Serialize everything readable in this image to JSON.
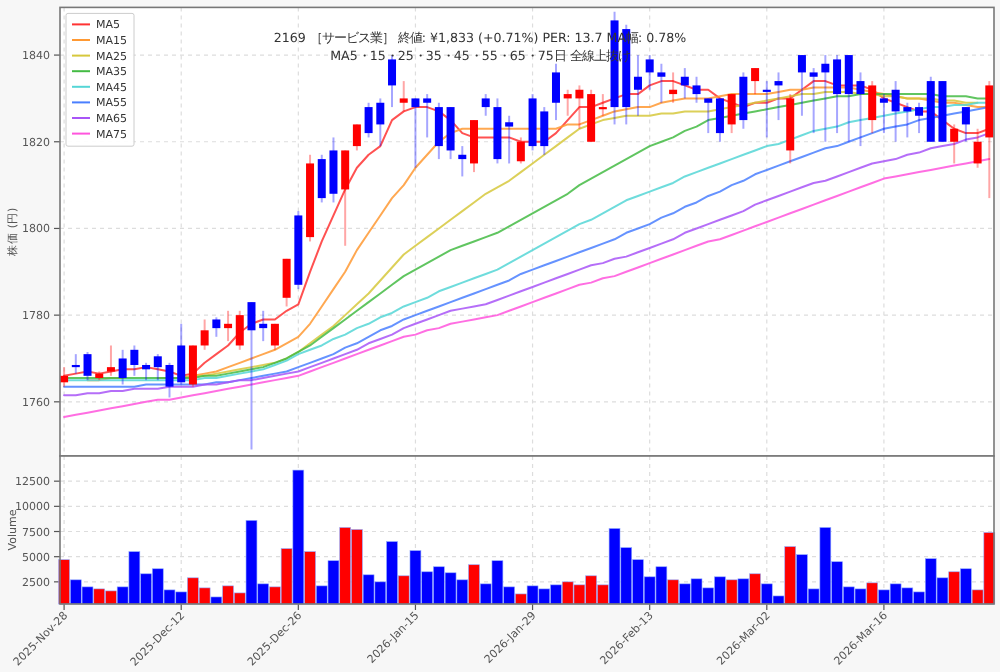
{
  "chart_data": [
    {
      "type": "candlestick",
      "title": "2169 ［サービス業］ 終値: ¥1,833 (+0.71%)   PER: 13.7 MA幅: 0.78%",
      "subtitle": "MA5・15・25・35・45・55・65・75日 全線上抜け",
      "ylabel": "株価 (円)",
      "categories": [
        null,
        null,
        null,
        null,
        null,
        null,
        null,
        null,
        null,
        null,
        null,
        null,
        null,
        null,
        null,
        null,
        null,
        null,
        null,
        null,
        null,
        null,
        null,
        null,
        null,
        null,
        null,
        null,
        null,
        null,
        null,
        null,
        null,
        null,
        null,
        null,
        null,
        null,
        null,
        null,
        null,
        null,
        null,
        null,
        null,
        null,
        null,
        null,
        null,
        null,
        null,
        null,
        null,
        null,
        null,
        null,
        null,
        null,
        null,
        null,
        null,
        null,
        null,
        null,
        null,
        null,
        null,
        null,
        null,
        null,
        null,
        null,
        null,
        null,
        null,
        null,
        null,
        null,
        null,
        null
      ],
      "ohlc": [
        [
          1764.5,
          1768,
          1763.5,
          1766
        ],
        [
          1768.5,
          1771,
          1766.5,
          1768
        ],
        [
          1771,
          1771.5,
          1765,
          1766
        ],
        [
          1765.5,
          1767,
          1765,
          1766.5
        ],
        [
          1767,
          1773,
          1766,
          1768
        ],
        [
          1770,
          1772,
          1764,
          1765.5
        ],
        [
          1772,
          1773,
          1766,
          1768.5
        ],
        [
          1768.5,
          1769,
          1765,
          1767.5
        ],
        [
          1770.5,
          1771,
          1765,
          1768
        ],
        [
          1768.5,
          1769,
          1761,
          1763.5
        ],
        [
          1773,
          1778,
          1764,
          1764.5
        ],
        [
          1764,
          1773,
          1763.5,
          1773
        ],
        [
          1773,
          1779,
          1772,
          1776.5
        ],
        [
          1779,
          1779.5,
          1775,
          1777
        ],
        [
          1777,
          1781,
          1774,
          1778
        ],
        [
          1773,
          1781,
          1772,
          1780
        ],
        [
          1783,
          1783,
          1749,
          1776.5
        ],
        [
          1778,
          1781,
          1774,
          1777
        ],
        [
          1773,
          1778,
          1772,
          1778
        ],
        [
          1784,
          1793,
          1782,
          1793
        ],
        [
          1803,
          1804,
          1786,
          1787
        ],
        [
          1798,
          1817,
          1797,
          1815
        ],
        [
          1816,
          1817,
          1806,
          1807
        ],
        [
          1818,
          1821,
          1806,
          1808
        ],
        [
          1809,
          1818,
          1796,
          1818
        ],
        [
          1819,
          1824,
          1818,
          1824
        ],
        [
          1828,
          1829,
          1821,
          1822
        ],
        [
          1829,
          1830,
          1819,
          1824
        ],
        [
          1839,
          1840,
          1828,
          1833
        ],
        [
          1829,
          1834,
          1827,
          1830
        ],
        [
          1830,
          1830,
          1814,
          1828
        ],
        [
          1830,
          1831,
          1821,
          1829
        ],
        [
          1828,
          1829,
          1816,
          1819
        ],
        [
          1828,
          1828,
          1816,
          1818
        ],
        [
          1817,
          1819,
          1812,
          1816
        ],
        [
          1815,
          1825,
          1813,
          1825
        ],
        [
          1830,
          1831,
          1826,
          1828
        ],
        [
          1828,
          1830,
          1815,
          1816
        ],
        [
          1824.5,
          1826,
          1815,
          1823.5
        ],
        [
          1815.5,
          1821,
          1815,
          1820
        ],
        [
          1830,
          1831,
          1818,
          1819
        ],
        [
          1827,
          1828,
          1817,
          1819
        ],
        [
          1836,
          1838,
          1825,
          1829
        ],
        [
          1830,
          1832,
          1826,
          1831
        ],
        [
          1830,
          1833,
          1823,
          1832
        ],
        [
          1820,
          1832,
          1820,
          1831
        ],
        [
          1827.5,
          1831,
          1826,
          1828
        ],
        [
          1848,
          1850,
          1824,
          1828
        ],
        [
          1846,
          1847,
          1824,
          1828
        ],
        [
          1835,
          1840,
          1826,
          1832
        ],
        [
          1839,
          1840,
          1832,
          1836
        ],
        [
          1836,
          1838,
          1829,
          1835
        ],
        [
          1831,
          1836,
          1829,
          1832
        ],
        [
          1835,
          1837,
          1830,
          1833
        ],
        [
          1833,
          1835,
          1829,
          1831
        ],
        [
          1830,
          1830,
          1822,
          1829
        ],
        [
          1830,
          1830,
          1820,
          1822
        ],
        [
          1824,
          1831,
          1822,
          1831
        ],
        [
          1835,
          1836,
          1823,
          1825
        ],
        [
          1834,
          1837,
          1831,
          1837
        ],
        [
          1832,
          1834,
          1821,
          1831.5
        ],
        [
          1834,
          1836,
          1825,
          1833
        ],
        [
          1818,
          1831,
          1815,
          1830
        ],
        [
          1840,
          1840,
          1826,
          1836
        ],
        [
          1836,
          1837,
          1822,
          1835
        ],
        [
          1838,
          1840,
          1820,
          1836
        ],
        [
          1839,
          1840,
          1822,
          1831
        ],
        [
          1840,
          1840,
          1820,
          1831
        ],
        [
          1834,
          1836,
          1819,
          1831
        ],
        [
          1825,
          1834,
          1822,
          1833
        ],
        [
          1830,
          1831,
          1822,
          1829
        ],
        [
          1832,
          1834,
          1820,
          1827
        ],
        [
          1828,
          1829,
          1821,
          1827
        ],
        [
          1828,
          1829,
          1822,
          1826
        ],
        [
          1834,
          1835,
          1820,
          1820
        ],
        [
          1834,
          1834,
          1820,
          1820
        ],
        [
          1820,
          1824,
          1815,
          1823
        ],
        [
          1828,
          1828,
          1820,
          1824
        ],
        [
          1815,
          1823,
          1814,
          1820
        ],
        [
          1821,
          1834,
          1807,
          1833
        ]
      ],
      "colors": [
        "#ff0000",
        "#0000ff",
        "#0000ff",
        "#ff0000",
        "#ff0000",
        "#0000ff",
        "#0000ff",
        "#0000ff",
        "#0000ff",
        "#0000ff",
        "#0000ff",
        "#ff0000",
        "#ff0000",
        "#0000ff",
        "#ff0000",
        "#ff0000",
        "#0000ff",
        "#0000ff",
        "#ff0000",
        "#ff0000",
        "#0000ff",
        "#ff0000",
        "#0000ff",
        "#0000ff",
        "#ff0000",
        "#ff0000",
        "#0000ff",
        "#0000ff",
        "#0000ff",
        "#ff0000",
        "#0000ff",
        "#0000ff",
        "#0000ff",
        "#0000ff",
        "#0000ff",
        "#ff0000",
        "#0000ff",
        "#0000ff",
        "#0000ff",
        "#ff0000",
        "#0000ff",
        "#0000ff",
        "#0000ff",
        "#ff0000",
        "#ff0000",
        "#ff0000",
        "#ff0000",
        "#0000ff",
        "#0000ff",
        "#0000ff",
        "#0000ff",
        "#0000ff",
        "#ff0000",
        "#0000ff",
        "#0000ff",
        "#0000ff",
        "#0000ff",
        "#ff0000",
        "#0000ff",
        "#ff0000",
        "#0000ff",
        "#0000ff",
        "#ff0000",
        "#0000ff",
        "#0000ff",
        "#0000ff",
        "#0000ff",
        "#0000ff",
        "#0000ff",
        "#ff0000",
        "#0000ff",
        "#0000ff",
        "#0000ff",
        "#0000ff",
        "#0000ff",
        "#0000ff",
        "#ff0000",
        "#0000ff",
        "#ff0000",
        "#ff0000"
      ],
      "series": [
        {
          "name": "MA5",
          "type": "line",
          "color": "#ff3333",
          "values": [
            1766,
            1766.5,
            1767,
            1766.5,
            1767,
            1767.5,
            1767.5,
            1768,
            1767.5,
            1767,
            1766,
            1766.5,
            1769,
            1771,
            1773,
            1776,
            1778,
            1779,
            1779,
            1781,
            1782.5,
            1790,
            1797,
            1803,
            1809,
            1814,
            1817,
            1819,
            1825,
            1827,
            1828,
            1828,
            1827,
            1825,
            1822,
            1821,
            1821,
            1821,
            1821,
            1820,
            1820,
            1820,
            1822,
            1825,
            1828,
            1828,
            1829,
            1830,
            1831,
            1831,
            1833,
            1834,
            1834,
            1833,
            1832,
            1832,
            1830,
            1829,
            1828,
            1829,
            1829,
            1830,
            1830,
            1832,
            1834,
            1834,
            1833,
            1833,
            1833,
            1832,
            1830,
            1829,
            1828,
            1827,
            1827,
            1825,
            1823,
            1822,
            1822,
            1823
          ]
        },
        {
          "name": "MA15",
          "type": "line",
          "color": "#ff9933",
          "values": [
            null,
            null,
            1765,
            1765,
            1765.5,
            1765.5,
            null,
            null,
            1765.5,
            1765.5,
            1765.5,
            1766,
            1766.5,
            1767,
            1768,
            1769,
            1770,
            1771,
            1772,
            1773.5,
            1775,
            1778,
            1782,
            1786,
            1790,
            1795,
            1799,
            1803,
            1807,
            1810,
            1814,
            1817,
            1820,
            1822,
            1823,
            1823,
            1823,
            1823,
            1823,
            1823,
            1823,
            1823,
            1823,
            1824,
            1824,
            1825,
            1826,
            1827,
            1827.5,
            1828,
            1828,
            1829,
            1829.5,
            1830,
            1830,
            1830,
            1830.5,
            1831,
            1831,
            1831,
            1831,
            1831.5,
            1832,
            1832,
            1832.5,
            1832.5,
            1832.5,
            1832.5,
            1832,
            1831.5,
            1831,
            1830.5,
            1830,
            1830,
            1829.5,
            1829,
            1829,
            1828.5,
            1828,
            1828
          ]
        },
        {
          "name": "MA25",
          "type": "line",
          "color": "#d6c83c",
          "values": [
            null,
            null,
            null,
            null,
            null,
            null,
            null,
            null,
            null,
            null,
            1765.5,
            1766,
            1766,
            1766.5,
            1767,
            1767.5,
            1768,
            1768.5,
            1769,
            1770,
            1771.5,
            1773.5,
            1775.5,
            1777.5,
            1780,
            1782.5,
            1785,
            1788,
            1791,
            1794,
            1796,
            1798,
            1800,
            1802,
            1804,
            1806,
            1808,
            1809.5,
            1811,
            1813,
            1815,
            1817,
            1819,
            1821,
            1823,
            1824,
            1825,
            1825.5,
            1826,
            1826,
            1826,
            1826.5,
            1826.5,
            1827,
            1827,
            1827,
            1827.5,
            1828,
            1828.5,
            1829,
            1829.5,
            1830,
            1830.5,
            1831,
            1831,
            1831.5,
            1831.5,
            1831.5,
            1831,
            1831,
            1830.5,
            1830.5,
            1830,
            1830,
            1830,
            1829.5,
            1829.5,
            1829,
            1829,
            null
          ]
        },
        {
          "name": "MA35",
          "type": "line",
          "color": "#44bb44",
          "values": [
            1765.5,
            1765.5,
            1765.5,
            1765.5,
            1765.5,
            1765.5,
            1765.5,
            1765.5,
            1765.5,
            1765.5,
            1765.5,
            1765.5,
            1766,
            1766,
            1766.5,
            1767,
            1767.5,
            1768,
            1769,
            1770,
            1771.5,
            1773,
            1775,
            1777,
            1779,
            1781,
            1783,
            1785,
            1787,
            1789,
            1790.5,
            1792,
            1793.5,
            1795,
            1796,
            1797,
            1798,
            1799,
            1800.5,
            1802,
            1803.5,
            1805,
            1806.5,
            1808,
            1810,
            1811.5,
            1813,
            1814.5,
            1816,
            1817.5,
            1819,
            1820,
            1821,
            1822.5,
            1823.5,
            1825,
            1825.5,
            1826,
            1826.5,
            1827,
            1827.5,
            1828,
            1828.5,
            1829,
            1829.5,
            1830,
            1830.5,
            1830.5,
            1831,
            1831,
            1831,
            1831,
            1831,
            1831,
            1831,
            1830.5,
            1830.5,
            1830.5,
            1830,
            1830
          ]
        },
        {
          "name": "MA45",
          "type": "line",
          "color": "#55d6d6",
          "values": [
            1765,
            1765,
            1765,
            1765,
            1765,
            1765,
            1765,
            1765,
            1765,
            1765,
            1765,
            1765,
            1765.5,
            1765.5,
            1766,
            1766.5,
            1767,
            1767.5,
            1768.5,
            1769.5,
            1771,
            1772,
            1773,
            1774.5,
            1775.5,
            1777,
            1778,
            1779.5,
            1780.5,
            1782,
            1783,
            1784,
            1785.5,
            1786.5,
            1787.5,
            1788.5,
            1789.5,
            1790.5,
            1792,
            1793.5,
            1795,
            1796.5,
            1798,
            1799.5,
            1801,
            1802,
            1803.5,
            1805,
            1806.5,
            1807.5,
            1808.5,
            1809.5,
            1810.5,
            1812,
            1813,
            1814,
            1815,
            1816,
            1817,
            1818,
            1819,
            1819.5,
            1820.5,
            1821.5,
            1822.5,
            1823,
            1823.5,
            1824.5,
            1825,
            1825.5,
            1826,
            1826.5,
            1827,
            1827.5,
            1828,
            1828,
            1828.5,
            1828.5,
            1829,
            1829
          ]
        },
        {
          "name": "MA55",
          "type": "line",
          "color": "#4a7fff",
          "values": [
            1763.5,
            1763.5,
            1763.5,
            1763.5,
            1763.5,
            1763.5,
            1763.5,
            1764,
            1764,
            1764,
            1764,
            1764,
            1764,
            1764.5,
            1764.5,
            1765,
            1765.5,
            1766,
            1766.5,
            1767,
            1768,
            1769,
            1770,
            1771,
            1772.5,
            1773.5,
            1775,
            1776.5,
            1777.5,
            1779,
            1780,
            1781,
            1782,
            1783,
            1784,
            1785,
            1786,
            1787,
            1788,
            1789.5,
            1790.5,
            1791.5,
            1792.5,
            1793.5,
            1794.5,
            1795.5,
            1796.5,
            1797.5,
            1799,
            1800,
            1801,
            1802.5,
            1803.5,
            1805,
            1806,
            1807.5,
            1808.5,
            1810,
            1811,
            1812.5,
            1813.5,
            1814.5,
            1815.5,
            1816.5,
            1817.5,
            1818.5,
            1819,
            1820,
            1821,
            1822,
            1823,
            1823.5,
            1824,
            1825,
            1825.5,
            1826,
            1826.5,
            1827,
            1827.5,
            1828
          ]
        },
        {
          "name": "MA65",
          "type": "line",
          "color": "#a855f7",
          "values": [
            1761.5,
            1761.5,
            1762,
            1762,
            1762.5,
            1762.5,
            1763,
            1763,
            1763,
            1763.5,
            1763.5,
            1763.5,
            1764,
            1764,
            1764.5,
            1765,
            1765,
            1765.5,
            1766,
            1766.5,
            1767,
            1768,
            1769,
            1770,
            1771,
            1772,
            1773.5,
            1774.5,
            1775.5,
            1777,
            1778,
            1779,
            1780,
            1781,
            1781.5,
            1782,
            1782.5,
            1783.5,
            1784.5,
            1785.5,
            1786.5,
            1787.5,
            1788.5,
            1789.5,
            1790.5,
            1791.5,
            1792,
            1793,
            1793.5,
            1794.5,
            1795.5,
            1796.5,
            1797.5,
            1799,
            1800,
            1801,
            1802,
            1803,
            1804,
            1805.5,
            1806.5,
            1807.5,
            1808.5,
            1809.5,
            1810.5,
            1811,
            1812,
            1813,
            1814,
            1815,
            1815.5,
            1816,
            1817,
            1817.5,
            1818.5,
            1819,
            1819.5,
            1820.5,
            1821,
            1822
          ]
        },
        {
          "name": "MA75",
          "type": "line",
          "color": "#ff55dd",
          "values": [
            1756.5,
            1757,
            1757.5,
            1758,
            1758.5,
            1759,
            1759.5,
            1760,
            1760.5,
            1760.5,
            1761,
            1761.5,
            1762,
            1762.5,
            1763,
            1763.5,
            1764,
            1764.5,
            1765,
            1765.5,
            1766,
            1767,
            1768,
            1769,
            1770,
            1771,
            1772,
            1773,
            1774,
            1775,
            1775.5,
            1776.5,
            1777,
            1778,
            1778.5,
            1779,
            1779.5,
            1780,
            1781,
            1782,
            1783,
            1784,
            1785,
            1786,
            1787,
            1787.5,
            1788.5,
            1789,
            1790,
            1791,
            1792,
            1793,
            1794,
            1795,
            1796,
            1797,
            1797.5,
            1798.5,
            1799.5,
            1800.5,
            1801.5,
            1802.5,
            1803.5,
            1804.5,
            1805.5,
            1806.5,
            1807.5,
            1808.5,
            1809.5,
            1810.5,
            1811.5,
            1812,
            1812.5,
            1813,
            1813.5,
            1814,
            1814.5,
            1815,
            1815.5,
            1816
          ]
        }
      ],
      "legend": "top left",
      "grid": true,
      "ylim": [
        1747.5,
        1851
      ],
      "yticks": [
        1760,
        1780,
        1800,
        1820,
        1840
      ],
      "tick_labels": "y"
    },
    {
      "type": "bar",
      "ylabel": "Volume",
      "categories": [
        "2025-Nov-28",
        null,
        null,
        null,
        null,
        null,
        null,
        null,
        null,
        null,
        "2025-Dec-12",
        null,
        null,
        null,
        null,
        null,
        null,
        null,
        null,
        null,
        "2025-Dec-26",
        null,
        null,
        null,
        null,
        null,
        null,
        null,
        null,
        null,
        "2026-Jan-15",
        null,
        null,
        null,
        null,
        null,
        null,
        null,
        null,
        null,
        "2026-Jan-29",
        null,
        null,
        null,
        null,
        null,
        null,
        null,
        null,
        null,
        "2026-Feb-13",
        null,
        null,
        null,
        null,
        null,
        null,
        null,
        null,
        null,
        "2026-Mar-02",
        null,
        null,
        null,
        null,
        null,
        null,
        null,
        null,
        null,
        "2026-Mar-16",
        null,
        null,
        null,
        null,
        null,
        null,
        null,
        null,
        null
      ],
      "values": [
        4700,
        2700,
        2000,
        1800,
        1600,
        2000,
        5500,
        3300,
        3800,
        1700,
        1500,
        2900,
        1900,
        1000,
        2100,
        1400,
        8600,
        2300,
        2000,
        5800,
        13600,
        5500,
        2100,
        4600,
        7900,
        7700,
        3200,
        2500,
        6500,
        3100,
        5600,
        3500,
        4000,
        3400,
        2700,
        4200,
        2300,
        4600,
        2000,
        1300,
        2100,
        1800,
        2200,
        2500,
        2200,
        3100,
        2200,
        7800,
        5900,
        4700,
        3000,
        4000,
        2700,
        2300,
        2800,
        1900,
        3000,
        2700,
        2800,
        3300,
        2300,
        1100,
        6000,
        5200,
        1800,
        7900,
        4500,
        2000,
        1800,
        2400,
        1700,
        2300,
        1900,
        1500,
        4800,
        2900,
        3500,
        3800,
        1700,
        7400
      ],
      "colors": [
        "#ff0000",
        "#0000ff",
        "#0000ff",
        "#ff0000",
        "#ff0000",
        "#0000ff",
        "#0000ff",
        "#0000ff",
        "#0000ff",
        "#0000ff",
        "#0000ff",
        "#ff0000",
        "#ff0000",
        "#0000ff",
        "#ff0000",
        "#ff0000",
        "#0000ff",
        "#0000ff",
        "#ff0000",
        "#ff0000",
        "#0000ff",
        "#ff0000",
        "#0000ff",
        "#0000ff",
        "#ff0000",
        "#ff0000",
        "#0000ff",
        "#0000ff",
        "#0000ff",
        "#ff0000",
        "#0000ff",
        "#0000ff",
        "#0000ff",
        "#0000ff",
        "#0000ff",
        "#ff0000",
        "#0000ff",
        "#0000ff",
        "#0000ff",
        "#ff0000",
        "#0000ff",
        "#0000ff",
        "#0000ff",
        "#ff0000",
        "#ff0000",
        "#ff0000",
        "#ff0000",
        "#0000ff",
        "#0000ff",
        "#0000ff",
        "#0000ff",
        "#0000ff",
        "#ff0000",
        "#0000ff",
        "#0000ff",
        "#0000ff",
        "#0000ff",
        "#ff0000",
        "#0000ff",
        "#ff0000",
        "#0000ff",
        "#0000ff",
        "#ff0000",
        "#0000ff",
        "#0000ff",
        "#0000ff",
        "#0000ff",
        "#0000ff",
        "#0000ff",
        "#ff0000",
        "#0000ff",
        "#0000ff",
        "#0000ff",
        "#0000ff",
        "#0000ff",
        "#0000ff",
        "#ff0000",
        "#0000ff",
        "#ff0000",
        "#ff0000"
      ],
      "grid": true,
      "ylim": [
        300,
        15000
      ],
      "yticks": [
        2500,
        5000,
        7500,
        10000,
        12500
      ]
    }
  ]
}
